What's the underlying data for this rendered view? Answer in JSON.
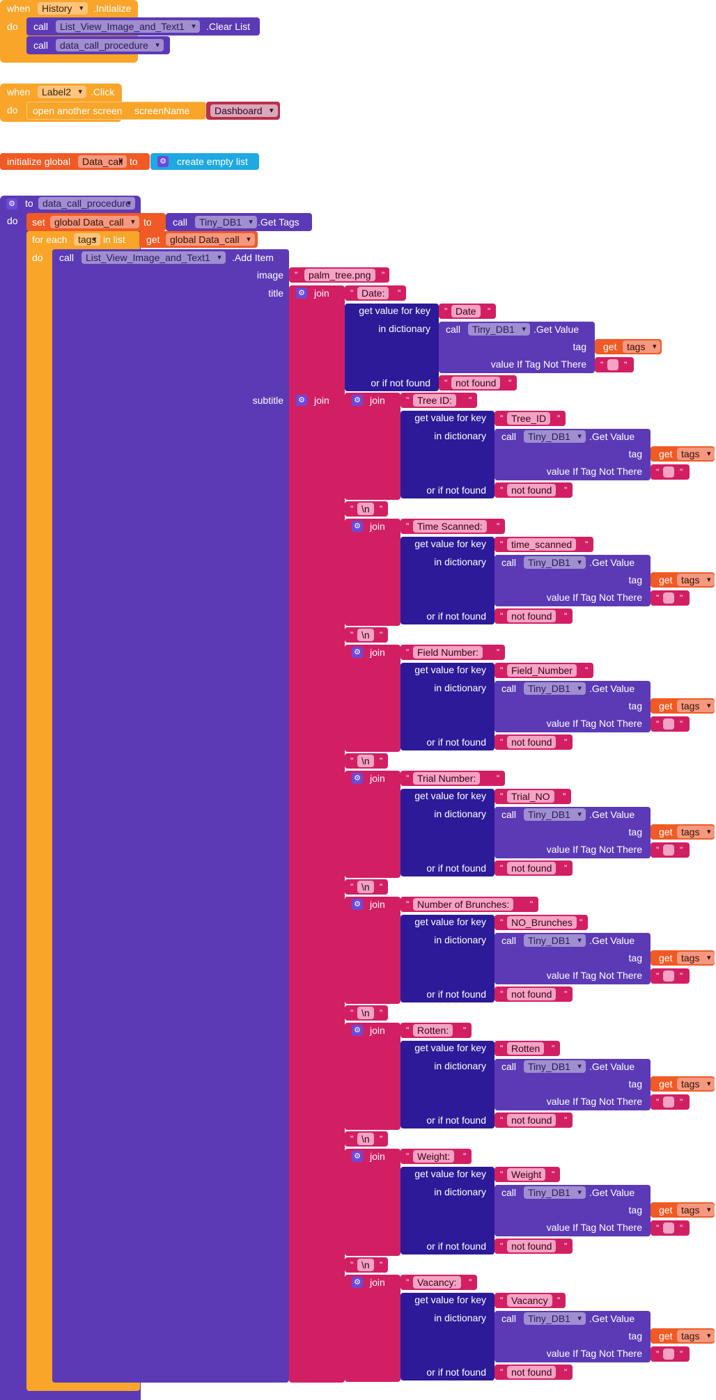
{
  "kw": {
    "when": "when",
    "do": "do",
    "call": "call",
    "set": "set",
    "to": "to",
    "get": "get",
    "join": "join",
    "for_each": "for each",
    "in_list": "in list",
    "image": "image",
    "title": "title",
    "subtitle": "subtitle",
    "initialize_global": "initialize global",
    "create_empty_list": "create empty list",
    "open_another_screen": "open another screen",
    "screen_name": "screenName",
    "get_value_for_key": "get value for key",
    "in_dictionary": "in dictionary",
    "or_if_not_found": "or if not found",
    "tag": "tag",
    "value_if_tag_not_there": "value If Tag Not There",
    "quote": "\"",
    "settings_glyph": "⚙"
  },
  "event_history": {
    "component": "History",
    "event": ".Initialize",
    "stmt1_component": "List_View_Image_and_Text1",
    "stmt1_method": ".Clear List",
    "stmt2_procedure": "data_call_procedure"
  },
  "event_label2": {
    "component": "Label2",
    "event": ".Click",
    "screen": "Dashboard"
  },
  "global_init": {
    "name": "Data_call"
  },
  "procedure": {
    "name": "data_call_procedure",
    "set_var": "global Data_call",
    "db_component": "Tiny_DB1",
    "get_tags": ".Get Tags",
    "loop_var": "tags",
    "list_var": "global Data_call",
    "list_component": "List_View_Image_and_Text1",
    "add_item": ".Add Item",
    "image_value": "palm_tree.png",
    "title_label": "Date:",
    "title_key": "Date",
    "get_value": ".Get Value",
    "not_found": "not found",
    "newline": "\\n"
  },
  "subtitle_fields": [
    {
      "label": "Tree ID:",
      "key": "Tree_ID"
    },
    {
      "label": "Time Scanned:",
      "key": "time_scanned"
    },
    {
      "label": "Field Number:",
      "key": "Field_Number"
    },
    {
      "label": "Trial Number:",
      "key": "Trial_NO"
    },
    {
      "label": "Number of Brunches:",
      "key": "NO_Brunches"
    },
    {
      "label": "Rotten:",
      "key": "Rotten"
    },
    {
      "label": "Weight:",
      "key": "Weight"
    },
    {
      "label": "Vacancy:",
      "key": "Vacancy"
    }
  ],
  "colors": {
    "control": "#f8a52a",
    "component": "#5c3ab6",
    "text": "#d21f64",
    "dictionary": "#2c1a98",
    "variable": "#f05a24",
    "list": "#1fa8e2"
  }
}
